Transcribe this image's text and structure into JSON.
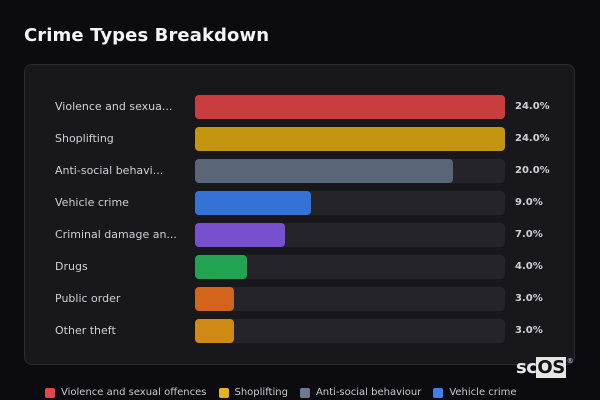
{
  "header": {
    "title": "Crime Types Breakdown"
  },
  "watermark": {
    "prefix": "sc",
    "highlight": "OS",
    "mark": "®"
  },
  "chart_data": {
    "type": "bar",
    "orientation": "horizontal",
    "title": "Crime Types Breakdown",
    "xlabel": "",
    "ylabel": "",
    "max_value": 24,
    "rows": [
      {
        "label": "Violence and sexua...",
        "full_label": "Violence and sexual offences",
        "value": 24.0,
        "display": "24.0%",
        "color": "#c93d3f"
      },
      {
        "label": "Shoplifting",
        "full_label": "Shoplifting",
        "value": 24.0,
        "display": "24.0%",
        "color": "#c4960f"
      },
      {
        "label": "Anti-social behavi...",
        "full_label": "Anti-social behaviour",
        "value": 20.0,
        "display": "20.0%",
        "color": "#5a6677"
      },
      {
        "label": "Vehicle crime",
        "full_label": "Vehicle crime",
        "value": 9.0,
        "display": "9.0%",
        "color": "#3572d6"
      },
      {
        "label": "Criminal damage an...",
        "full_label": "Criminal damage and arson",
        "value": 7.0,
        "display": "7.0%",
        "color": "#7650cf"
      },
      {
        "label": "Drugs",
        "full_label": "Drugs",
        "value": 4.0,
        "display": "4.0%",
        "color": "#22a352"
      },
      {
        "label": "Public order",
        "full_label": "Public order",
        "value": 3.0,
        "display": "3.0%",
        "color": "#d4641c"
      },
      {
        "label": "Other theft",
        "full_label": "Other theft",
        "value": 3.0,
        "display": "3.0%",
        "color": "#d08a14"
      }
    ],
    "legend": [
      {
        "label": "Violence and sexual offences",
        "color": "#e0484a"
      },
      {
        "label": "Shoplifting",
        "color": "#e6b31e"
      },
      {
        "label": "Anti-social behaviour",
        "color": "#6f7b8d"
      },
      {
        "label": "Vehicle crime",
        "color": "#3f7fe8"
      }
    ]
  }
}
